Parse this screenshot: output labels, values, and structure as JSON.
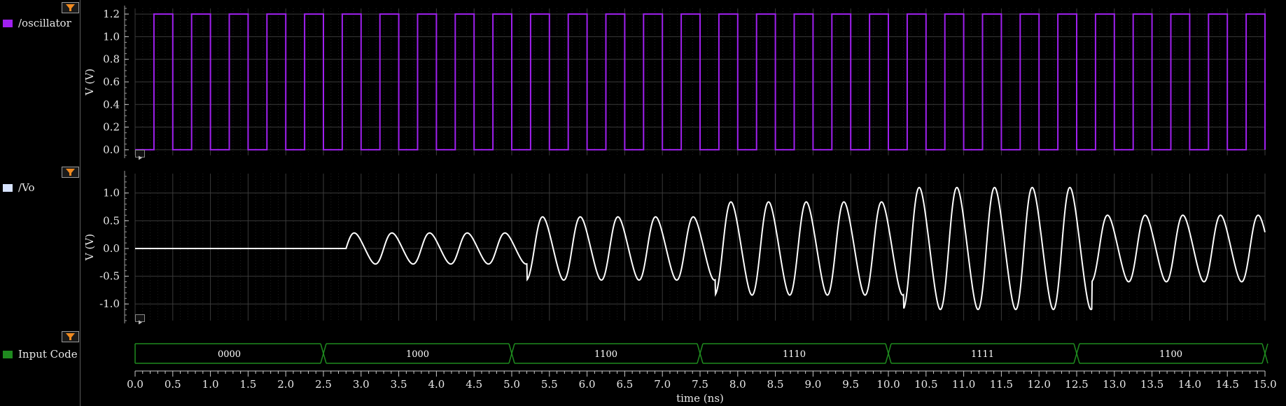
{
  "signals": [
    {
      "label": "/oscillator",
      "color": "#a020f0",
      "icon": "filter-icon"
    },
    {
      "label": "/Vo",
      "color": "#d7e3ff",
      "icon": "filter-icon"
    },
    {
      "label": "Input Code",
      "color": "#1f8a1f",
      "icon": "filter-icon"
    }
  ],
  "panels": {
    "oscillator": {
      "ylabel": "V (V)",
      "ylim": [
        -0.05,
        1.25
      ],
      "yticks": [
        "0.0",
        "0.2",
        "0.4",
        "0.6",
        "0.8",
        "1.0",
        "1.2"
      ]
    },
    "vo": {
      "ylabel": "V (V)",
      "ylim": [
        -1.3,
        1.35
      ],
      "yticks": [
        "-1.0",
        "-0.5",
        "0.0",
        "0.5",
        "1.0"
      ]
    }
  },
  "xaxis": {
    "label": "time (ns)",
    "ticks": [
      "0.0",
      "0.5",
      "1.0",
      "1.5",
      "2.0",
      "2.5",
      "3.0",
      "3.5",
      "4.0",
      "4.5",
      "5.0",
      "5.5",
      "6.0",
      "6.5",
      "7.0",
      "7.5",
      "8.0",
      "8.5",
      "9.0",
      "9.5",
      "10.0",
      "10.5",
      "11.0",
      "11.5",
      "12.0",
      "12.5",
      "13.0",
      "13.5",
      "14.0",
      "14.5",
      "15.0"
    ]
  },
  "chart_data": [
    {
      "type": "line",
      "name": "/oscillator",
      "x_range_ns": [
        0,
        15
      ],
      "low_V": 0.0,
      "high_V": 1.2,
      "rising_edges_ns": [
        0.25,
        0.75,
        1.25,
        1.75,
        2.25,
        2.75,
        3.25,
        3.75,
        4.25,
        4.75,
        5.25,
        5.75,
        6.25,
        6.75,
        7.25,
        7.75,
        8.25,
        8.75,
        9.25,
        9.75,
        10.25,
        10.75,
        11.25,
        11.75,
        12.25,
        12.75,
        13.25,
        13.75,
        14.25,
        14.75
      ],
      "falling_edges_ns": [
        0.5,
        1.0,
        1.5,
        2.0,
        2.5,
        3.0,
        3.5,
        4.0,
        4.5,
        5.0,
        5.5,
        6.0,
        6.5,
        7.0,
        7.5,
        8.0,
        8.5,
        9.0,
        9.5,
        10.0,
        10.5,
        11.0,
        11.5,
        12.0,
        12.5,
        13.0,
        13.5,
        14.0,
        14.5,
        15.0
      ]
    },
    {
      "type": "line",
      "name": "/Vo",
      "x_range_ns": [
        0,
        15
      ],
      "period_ns": 0.5,
      "start_ns": 2.8,
      "segments": [
        {
          "t0": 0.0,
          "t1": 2.8,
          "amplitude_V": 0.0
        },
        {
          "t0": 2.8,
          "t1": 5.2,
          "amplitude_V": 0.28
        },
        {
          "t0": 5.2,
          "t1": 7.7,
          "amplitude_V": 0.57
        },
        {
          "t0": 7.7,
          "t1": 10.2,
          "amplitude_V": 0.84
        },
        {
          "t0": 10.2,
          "t1": 12.7,
          "amplitude_V": 1.1
        },
        {
          "t0": 12.7,
          "t1": 15.0,
          "amplitude_V": 0.6
        }
      ]
    },
    {
      "type": "bus",
      "name": "Input Code",
      "segments": [
        {
          "t0": 0.0,
          "t1": 2.5,
          "value": "0000"
        },
        {
          "t0": 2.5,
          "t1": 5.0,
          "value": "1000"
        },
        {
          "t0": 5.0,
          "t1": 7.5,
          "value": "1100"
        },
        {
          "t0": 7.5,
          "t1": 10.0,
          "value": "1110"
        },
        {
          "t0": 10.0,
          "t1": 12.5,
          "value": "1111"
        },
        {
          "t0": 12.5,
          "t1": 15.0,
          "value": "1100"
        }
      ]
    }
  ]
}
